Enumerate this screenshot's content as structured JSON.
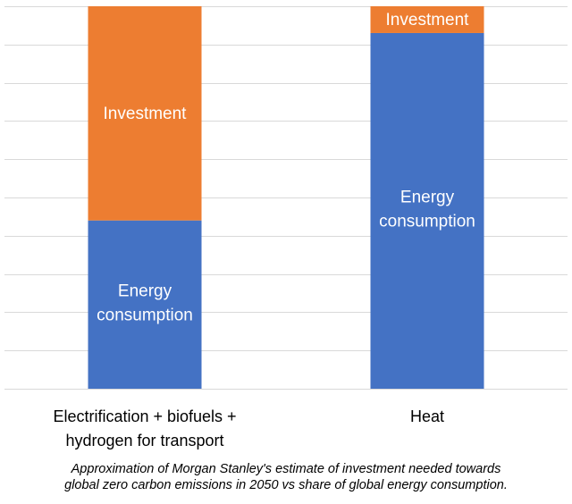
{
  "chart_data": {
    "type": "bar",
    "stacked": true,
    "title": "",
    "xlabel": "",
    "ylabel": "",
    "ylim": [
      0,
      100
    ],
    "grid": true,
    "legend": "none",
    "categories": [
      [
        "Electrification + biofuels +",
        "hydrogen for transport"
      ],
      [
        "Heat"
      ]
    ],
    "series": [
      {
        "name": "Energy consumption",
        "label_lines": [
          "Energy",
          "consumption"
        ],
        "color": "#4472c4",
        "values": [
          44,
          93
        ]
      },
      {
        "name": "Investment",
        "label_lines": [
          "Investment"
        ],
        "color": "#ed7d31",
        "values": [
          56,
          7
        ]
      }
    ]
  },
  "caption": {
    "lines": [
      "Approximation of Morgan Stanley's estimate of investment needed towards",
      "global zero carbon emissions in 2050 vs share of global energy consumption."
    ]
  }
}
